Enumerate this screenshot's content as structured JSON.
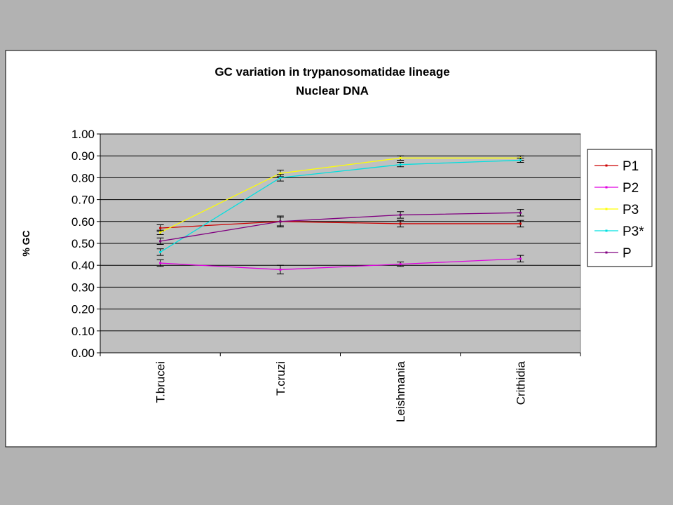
{
  "chart_data": {
    "type": "line",
    "title": "GC variation in trypanosomatidae lineage",
    "subtitle": "Nuclear DNA",
    "y_label": "% GC",
    "categories": [
      "T.brucei",
      "T.cruzi",
      "Leishmania",
      "Crithidia"
    ],
    "series": [
      {
        "name": "P1",
        "color": "#cc0000",
        "values": [
          0.57,
          0.6,
          0.59,
          0.59
        ],
        "errors": [
          0.015,
          0.02,
          0.015,
          0.015
        ]
      },
      {
        "name": "P2",
        "color": "#e000e0",
        "values": [
          0.41,
          0.38,
          0.405,
          0.43
        ],
        "errors": [
          0.015,
          0.02,
          0.01,
          0.015
        ]
      },
      {
        "name": "P3",
        "color": "#ffff00",
        "values": [
          0.55,
          0.82,
          0.89,
          0.89
        ],
        "errors": [
          0.01,
          0.015,
          0.01,
          0.01
        ]
      },
      {
        "name": "P3*",
        "color": "#00e0e0",
        "values": [
          0.46,
          0.8,
          0.86,
          0.88
        ],
        "errors": [
          0.015,
          0.015,
          0.01,
          0.01
        ]
      },
      {
        "name": "P",
        "color": "#800080",
        "values": [
          0.51,
          0.6,
          0.63,
          0.64
        ],
        "errors": [
          0.015,
          0.025,
          0.015,
          0.015
        ]
      }
    ],
    "ylim": [
      0,
      1
    ],
    "yticks": [
      {
        "value": 0,
        "label": "0.00"
      },
      {
        "value": 0.1,
        "label": "0.10"
      },
      {
        "value": 0.2,
        "label": "0.20"
      },
      {
        "value": 0.3,
        "label": "0.30"
      },
      {
        "value": 0.4,
        "label": "0.40"
      },
      {
        "value": 0.5,
        "label": "0.50"
      },
      {
        "value": 0.6,
        "label": "0.60"
      },
      {
        "value": 0.7,
        "label": "0.70"
      },
      {
        "value": 0.8,
        "label": "0.80"
      },
      {
        "value": 0.9,
        "label": "0.90"
      },
      {
        "value": 1,
        "label": "1.00"
      }
    ],
    "grid": true,
    "legend": "right"
  }
}
